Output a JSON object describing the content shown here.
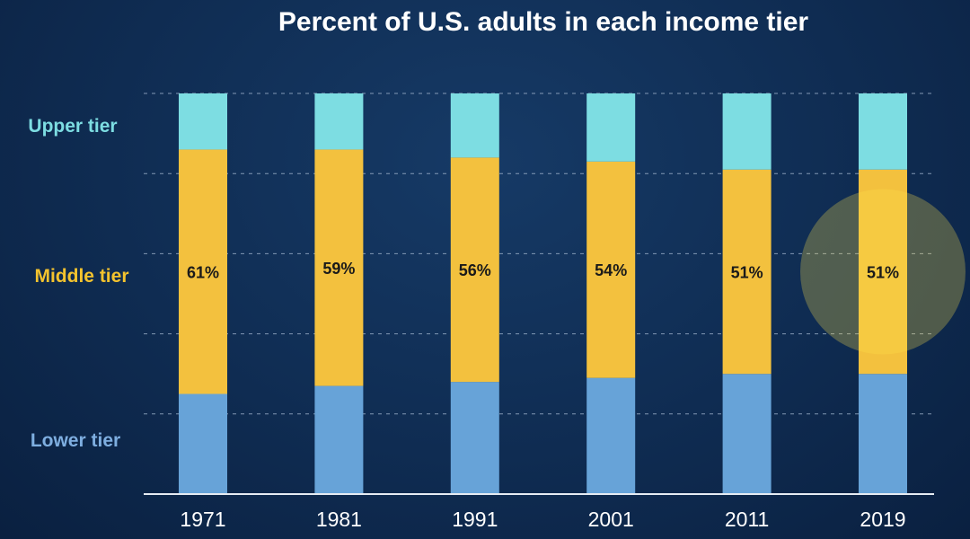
{
  "colors": {
    "upper": "#7ddde2",
    "middle": "#f3c13e",
    "lower": "#67a3d8",
    "upper_label": "#7ddde2",
    "middle_label": "#f4c32e",
    "lower_label": "#7eaee0",
    "highlight": "#ffe44d"
  },
  "chart_data": {
    "type": "bar",
    "stacked": true,
    "title": "Percent of U.S. adults in each income tier",
    "categories": [
      "1971",
      "1981",
      "1991",
      "2001",
      "2011",
      "2019"
    ],
    "series": [
      {
        "name": "Lower tier",
        "values": [
          25,
          27,
          28,
          29,
          30,
          30
        ]
      },
      {
        "name": "Middle tier",
        "values": [
          61,
          59,
          56,
          54,
          51,
          51
        ],
        "labels": [
          "61%",
          "59%",
          "56%",
          "54%",
          "51%",
          "51%"
        ]
      },
      {
        "name": "Upper tier",
        "values": [
          14,
          14,
          16,
          17,
          19,
          19
        ]
      }
    ],
    "row_labels": [
      "Upper tier",
      "Middle tier",
      "Lower tier"
    ],
    "highlight_category": "2019",
    "ylim": [
      0,
      100
    ],
    "grid": true
  }
}
